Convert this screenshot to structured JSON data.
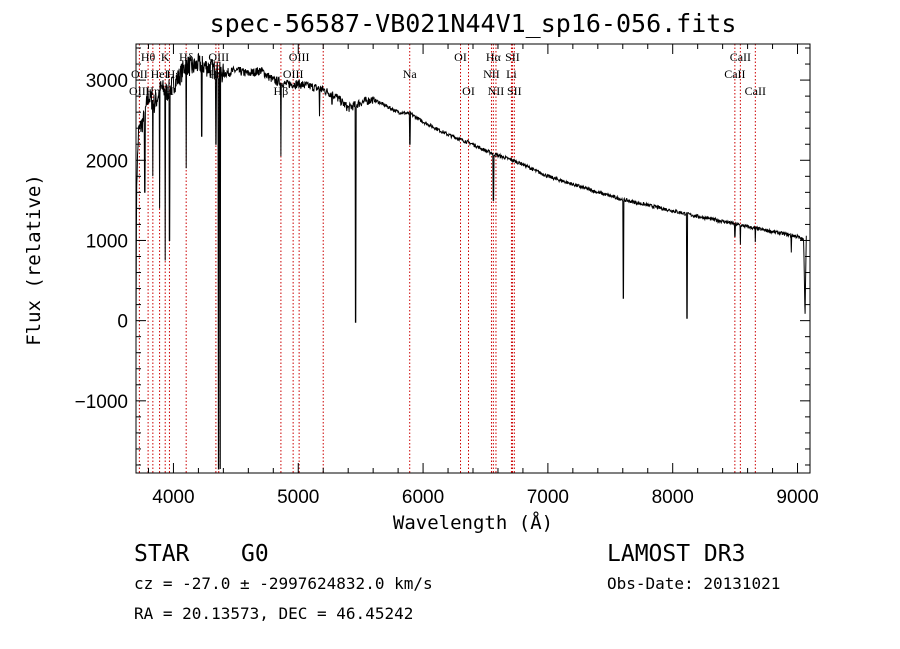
{
  "chart_data": {
    "type": "line",
    "title": "spec-56587-VB021N44V1_sp16-056.fits",
    "xlabel": "Wavelength (Å)",
    "ylabel": "Flux (relative)",
    "xlim": [
      3700,
      9100
    ],
    "ylim": [
      -1900,
      3450
    ],
    "xticks": [
      4000,
      5000,
      6000,
      7000,
      8000,
      9000
    ],
    "xtick_labels": [
      "4000",
      "5000",
      "6000",
      "7000",
      "8000",
      "9000"
    ],
    "yticks": [
      -1000,
      0,
      1000,
      2000,
      3000
    ],
    "ytick_labels": [
      "−1000",
      "0",
      "1000",
      "2000",
      "3000"
    ],
    "continuum": [
      [
        3700,
        0
      ],
      [
        3705,
        1700
      ],
      [
        3720,
        2350
      ],
      [
        3760,
        2500
      ],
      [
        3800,
        2800
      ],
      [
        3850,
        2700
      ],
      [
        3900,
        2900
      ],
      [
        3950,
        2850
      ],
      [
        4000,
        2950
      ],
      [
        4050,
        3050
      ],
      [
        4100,
        3200
      ],
      [
        4150,
        3150
      ],
      [
        4200,
        3200
      ],
      [
        4300,
        3150
      ],
      [
        4400,
        3080
      ],
      [
        4500,
        3120
      ],
      [
        4600,
        3080
      ],
      [
        4700,
        3120
      ],
      [
        4800,
        3000
      ],
      [
        4900,
        2950
      ],
      [
        5000,
        2950
      ],
      [
        5100,
        2920
      ],
      [
        5200,
        2880
      ],
      [
        5300,
        2800
      ],
      [
        5400,
        2650
      ],
      [
        5500,
        2720
      ],
      [
        5600,
        2760
      ],
      [
        5700,
        2680
      ],
      [
        5800,
        2600
      ],
      [
        5900,
        2580
      ],
      [
        6000,
        2480
      ],
      [
        6100,
        2400
      ],
      [
        6200,
        2320
      ],
      [
        6300,
        2260
      ],
      [
        6400,
        2200
      ],
      [
        6500,
        2120
      ],
      [
        6600,
        2060
      ],
      [
        6700,
        2010
      ],
      [
        6800,
        1950
      ],
      [
        6900,
        1870
      ],
      [
        7000,
        1800
      ],
      [
        7200,
        1700
      ],
      [
        7400,
        1600
      ],
      [
        7600,
        1510
      ],
      [
        7800,
        1440
      ],
      [
        8000,
        1370
      ],
      [
        8200,
        1300
      ],
      [
        8400,
        1240
      ],
      [
        8600,
        1170
      ],
      [
        8800,
        1110
      ],
      [
        9000,
        1050
      ],
      [
        9050,
        1000
      ],
      [
        9060,
        0
      ],
      [
        9070,
        1080
      ]
    ],
    "absorption_features": [
      {
        "wavelength": 3770,
        "depth_to": 1600
      },
      {
        "wavelength": 3835,
        "depth_to": 1800
      },
      {
        "wavelength": 3889,
        "depth_to": 1400
      },
      {
        "wavelength": 3934,
        "depth_to": 750
      },
      {
        "wavelength": 3968,
        "depth_to": 1000
      },
      {
        "wavelength": 4102,
        "depth_to": 1900
      },
      {
        "wavelength": 4226,
        "depth_to": 2300
      },
      {
        "wavelength": 4340,
        "depth_to": 2200
      },
      {
        "wavelength": 4362,
        "depth_to": -1850
      },
      {
        "wavelength": 4375,
        "depth_to": -1850
      },
      {
        "wavelength": 4861,
        "depth_to": 2050
      },
      {
        "wavelength": 5170,
        "depth_to": 2550
      },
      {
        "wavelength": 5270,
        "depth_to": 2700
      },
      {
        "wavelength": 5460,
        "depth_to": -20
      },
      {
        "wavelength": 5895,
        "depth_to": 2200
      },
      {
        "wavelength": 6563,
        "depth_to": 1500
      },
      {
        "wavelength": 7605,
        "depth_to": 280
      },
      {
        "wavelength": 8115,
        "depth_to": 30
      },
      {
        "wavelength": 8498,
        "depth_to": 1050
      },
      {
        "wavelength": 8542,
        "depth_to": 950
      },
      {
        "wavelength": 8662,
        "depth_to": 980
      },
      {
        "wavelength": 8950,
        "depth_to": 850
      }
    ],
    "spectral_lines": [
      {
        "label": "Hθ",
        "wavelength": 3797,
        "row": 1
      },
      {
        "label": "OII",
        "wavelength": 3727,
        "row": 2
      },
      {
        "label": "OIII",
        "wavelength": 3727,
        "row": 3
      },
      {
        "label": "K",
        "wavelength": 3934,
        "row": 1
      },
      {
        "label": "HeI",
        "wavelength": 3889,
        "row": 2
      },
      {
        "label": "Hη",
        "wavelength": 3835,
        "row": 3
      },
      {
        "label": "H",
        "wavelength": 3968,
        "row": 3
      },
      {
        "label": "Hδ",
        "wavelength": 4102,
        "row": 1
      },
      {
        "label": "Hε",
        "wavelength": 4000,
        "row": 2
      },
      {
        "label": "OIII",
        "wavelength": 4363,
        "row": 1
      },
      {
        "label": "Hγ",
        "wavelength": 4340,
        "row": 2
      },
      {
        "label": "OIII",
        "wavelength": 5007,
        "row": 1
      },
      {
        "label": "OIII",
        "wavelength": 4959,
        "row": 2
      },
      {
        "label": "Hβ",
        "wavelength": 4861,
        "row": 3
      },
      {
        "label": "Na",
        "wavelength": 5893,
        "row": 2
      },
      {
        "label": "OI",
        "wavelength": 6300,
        "row": 1
      },
      {
        "label": "OI",
        "wavelength": 6364,
        "row": 3
      },
      {
        "label": "Hα",
        "wavelength": 6563,
        "row": 1
      },
      {
        "label": "SII",
        "wavelength": 6716,
        "row": 1
      },
      {
        "label": "NII",
        "wavelength": 6548,
        "row": 2
      },
      {
        "label": "Li",
        "wavelength": 6708,
        "row": 2
      },
      {
        "label": "NII",
        "wavelength": 6584,
        "row": 3
      },
      {
        "label": "SII",
        "wavelength": 6731,
        "row": 3
      },
      {
        "label": "CaII",
        "wavelength": 8542,
        "row": 1
      },
      {
        "label": "CaII",
        "wavelength": 8498,
        "row": 2
      },
      {
        "label": "CaII",
        "wavelength": 8662,
        "row": 3
      }
    ],
    "marker_lines": [
      3727,
      3797,
      3835,
      3889,
      3934,
      3968,
      4102,
      4340,
      4363,
      4861,
      4959,
      5007,
      5200,
      5893,
      6300,
      6364,
      6548,
      6563,
      6584,
      6708,
      6716,
      6731,
      8498,
      8542,
      8662
    ],
    "marker_color": "#cc0000",
    "line_color": "#000000"
  },
  "info": {
    "object_class": "STAR",
    "subclass": "G0",
    "survey": "LAMOST DR3",
    "redshift_line": "cz = -27.0 ± -2997624832.0 km/s",
    "obs_date": "Obs-Date: 20131021",
    "coords": "RA =  20.13573, DEC =  46.45242"
  }
}
